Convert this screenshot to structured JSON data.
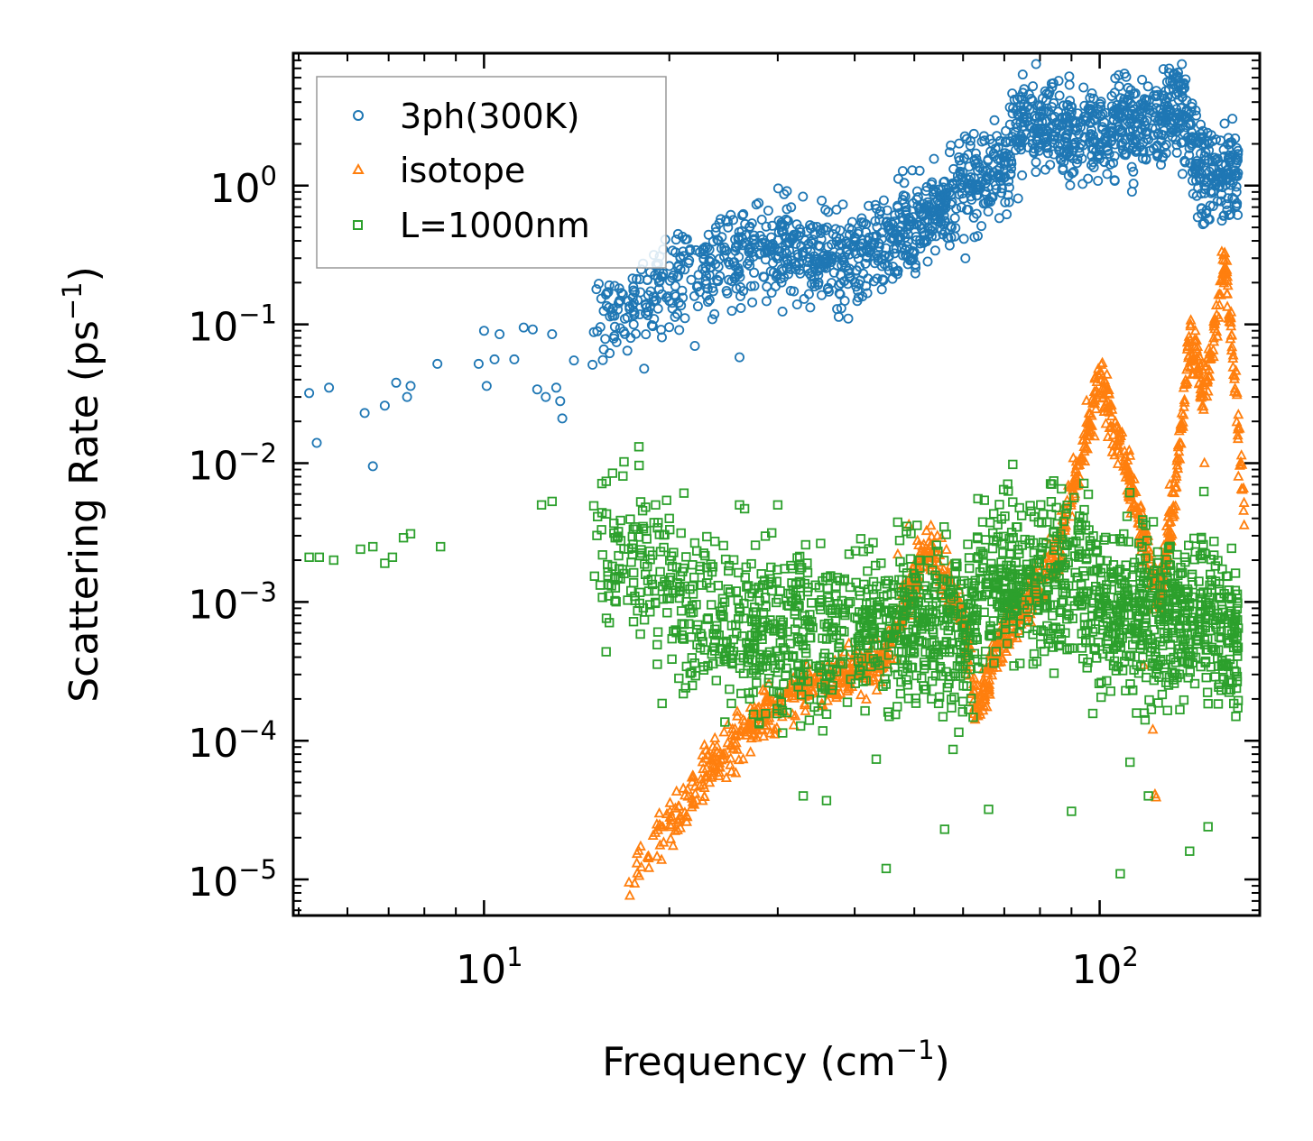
{
  "chart_data": {
    "type": "scatter",
    "title": "",
    "xlabel": {
      "text": "Frequency (cm",
      "sup": "−1",
      "close": ")"
    },
    "ylabel": {
      "text": "Scattering Rate (ps",
      "sup": "−1",
      "close": ")"
    },
    "xscale": "log",
    "yscale": "log",
    "xlim": [
      4.9,
      182
    ],
    "ylim": [
      5.5e-06,
      9.0
    ],
    "x_ticks": [
      {
        "value": 10,
        "base": "10",
        "exp": "1"
      },
      {
        "value": 100,
        "base": "10",
        "exp": "2"
      }
    ],
    "y_ticks": [
      {
        "value": 1e-05,
        "base": "10",
        "exp": "−5"
      },
      {
        "value": 0.0001,
        "base": "10",
        "exp": "−4"
      },
      {
        "value": 0.001,
        "base": "10",
        "exp": "−3"
      },
      {
        "value": 0.01,
        "base": "10",
        "exp": "−2"
      },
      {
        "value": 0.1,
        "base": "10",
        "exp": "−1"
      },
      {
        "value": 1,
        "base": "10",
        "exp": "0"
      }
    ],
    "grid": false,
    "legend_position": "top-left",
    "series": [
      {
        "name": "3ph(300K)",
        "marker": "circle",
        "color": "#1f77b4",
        "trend": [
          [
            5.2,
            0.03
          ],
          [
            6.4,
            0.025
          ],
          [
            8,
            0.04
          ],
          [
            10,
            0.07
          ],
          [
            12,
            0.08
          ],
          [
            14,
            0.1
          ],
          [
            17,
            0.14
          ],
          [
            20,
            0.2
          ],
          [
            25,
            0.3
          ],
          [
            30,
            0.35
          ],
          [
            40,
            0.3
          ],
          [
            50,
            0.5
          ],
          [
            60,
            1.0
          ],
          [
            70,
            1.3
          ],
          [
            75,
            3.0
          ],
          [
            90,
            2.3
          ],
          [
            110,
            2.8
          ],
          [
            120,
            2.2
          ],
          [
            135,
            4.0
          ],
          [
            145,
            1.3
          ],
          [
            155,
            1.0
          ],
          [
            168,
            1.3
          ]
        ],
        "points": [
          [
            5.2,
            0.032
          ],
          [
            5.35,
            0.014
          ],
          [
            5.6,
            0.035
          ],
          [
            6.4,
            0.023
          ],
          [
            6.6,
            0.0095
          ],
          [
            6.9,
            0.026
          ],
          [
            7.2,
            0.038
          ],
          [
            7.5,
            0.03
          ],
          [
            7.6,
            0.036
          ],
          [
            8.4,
            0.052
          ],
          [
            9.8,
            0.052
          ],
          [
            10,
            0.09
          ],
          [
            10.1,
            0.036
          ],
          [
            10.4,
            0.056
          ],
          [
            10.6,
            0.085
          ],
          [
            11.2,
            0.056
          ],
          [
            11.6,
            0.095
          ],
          [
            12,
            0.092
          ],
          [
            12.2,
            0.034
          ],
          [
            12.6,
            0.03
          ],
          [
            12.9,
            0.085
          ],
          [
            13.1,
            0.035
          ],
          [
            13.3,
            0.028
          ],
          [
            13.4,
            0.021
          ],
          [
            14,
            0.055
          ],
          [
            16,
            0.062
          ],
          [
            17.5,
            0.1
          ],
          [
            18.2,
            0.048
          ],
          [
            22,
            0.07
          ],
          [
            26,
            0.058
          ]
        ]
      },
      {
        "name": "isotope",
        "marker": "triangle",
        "color": "#ff7f0e",
        "trend": [
          [
            17,
            1e-05
          ],
          [
            20,
            2.5e-05
          ],
          [
            23,
            6e-05
          ],
          [
            28,
            0.00015
          ],
          [
            35,
            0.00025
          ],
          [
            45,
            0.0004
          ],
          [
            50,
            0.0015
          ],
          [
            53,
            0.0025
          ],
          [
            60,
            0.0008
          ],
          [
            63,
            0.00015
          ],
          [
            70,
            0.0006
          ],
          [
            85,
            0.002
          ],
          [
            100,
            0.04
          ],
          [
            110,
            0.01
          ],
          [
            125,
            0.001
          ],
          [
            132,
            0.005
          ],
          [
            140,
            0.08
          ],
          [
            148,
            0.03
          ],
          [
            160,
            0.3
          ],
          [
            172,
            0.005
          ]
        ],
        "points": [
          [
            17.2,
            9.5e-06
          ],
          [
            47,
            0.0022
          ],
          [
            49,
            0.0036
          ],
          [
            112,
            0.008
          ],
          [
            118,
            0.00035
          ],
          [
            122,
            0.00012
          ],
          [
            123,
            4.1e-05
          ],
          [
            123.5,
            3.9e-05
          ],
          [
            130,
            0.007
          ],
          [
            148,
            0.01
          ],
          [
            168,
            0.008
          ],
          [
            170,
            0.0065
          ]
        ]
      },
      {
        "name": "L=1000nm",
        "marker": "square",
        "color": "#2ca02c",
        "trend": [
          [
            5.2,
            0.002
          ],
          [
            8,
            0.0025
          ],
          [
            10,
            0.0025
          ],
          [
            14,
            0.0025
          ],
          [
            18,
            0.0018
          ],
          [
            22,
            0.0009
          ],
          [
            30,
            0.0006
          ],
          [
            40,
            0.0006
          ],
          [
            50,
            0.0007
          ],
          [
            60,
            0.0005
          ],
          [
            65,
            0.0015
          ],
          [
            80,
            0.0015
          ],
          [
            90,
            0.0015
          ],
          [
            100,
            0.001
          ],
          [
            110,
            0.0008
          ],
          [
            130,
            0.0008
          ],
          [
            150,
            0.0008
          ],
          [
            168,
            0.0005
          ]
        ],
        "points": [
          [
            5.2,
            0.0021
          ],
          [
            5.4,
            0.0021
          ],
          [
            5.7,
            0.002
          ],
          [
            6.3,
            0.0024
          ],
          [
            6.6,
            0.0025
          ],
          [
            6.9,
            0.0019
          ],
          [
            7.1,
            0.0021
          ],
          [
            7.4,
            0.0029
          ],
          [
            7.6,
            0.0031
          ],
          [
            8.5,
            0.0025
          ],
          [
            12.4,
            0.005
          ],
          [
            12.9,
            0.0053
          ],
          [
            19,
            0.005
          ],
          [
            19.8,
            0.0054
          ],
          [
            26,
            0.005
          ],
          [
            26.5,
            0.0047
          ],
          [
            30,
            0.005
          ],
          [
            33,
            4e-05
          ],
          [
            36,
            3.7e-05
          ],
          [
            45,
            1.2e-05
          ],
          [
            56,
            2.3e-05
          ],
          [
            66,
            3.2e-05
          ],
          [
            90,
            3.1e-05
          ],
          [
            108,
            1.1e-05
          ],
          [
            140,
            1.6e-05
          ],
          [
            150,
            2.4e-05
          ],
          [
            112,
            7e-05
          ],
          [
            120,
            4e-05
          ]
        ]
      }
    ]
  },
  "legend": {
    "items": [
      {
        "label": "3ph(300K)",
        "marker": "circle",
        "color": "#1f77b4"
      },
      {
        "label": "isotope",
        "marker": "triangle",
        "color": "#ff7f0e"
      },
      {
        "label": "L=1000nm",
        "marker": "square",
        "color": "#2ca02c"
      }
    ]
  }
}
